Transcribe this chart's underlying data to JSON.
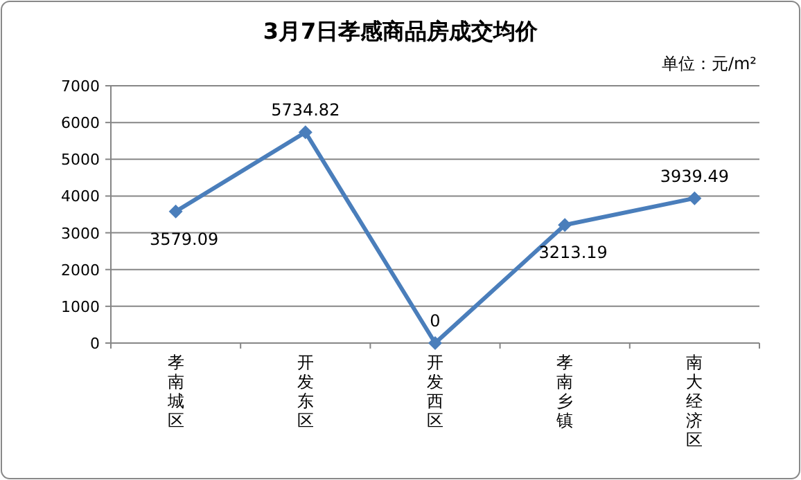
{
  "chart_data": {
    "type": "line",
    "title": "3月7日孝感商品房成交均价",
    "annotations": [
      "单位：元/m²"
    ],
    "categories": [
      "孝南城区",
      "开发东区",
      "开发西区",
      "孝南乡镇",
      "南大经济区"
    ],
    "series": [
      {
        "color": "#4a7ebb",
        "values": [
          3579.09,
          5734.82,
          0,
          3213.19,
          3939.49
        ]
      }
    ],
    "ylim": [
      0,
      7000
    ],
    "yticks": [
      0,
      1000,
      2000,
      3000,
      4000,
      5000,
      6000,
      7000
    ],
    "grid": "y",
    "marker": "diamond",
    "line_style": "solid",
    "data_labels": true
  }
}
